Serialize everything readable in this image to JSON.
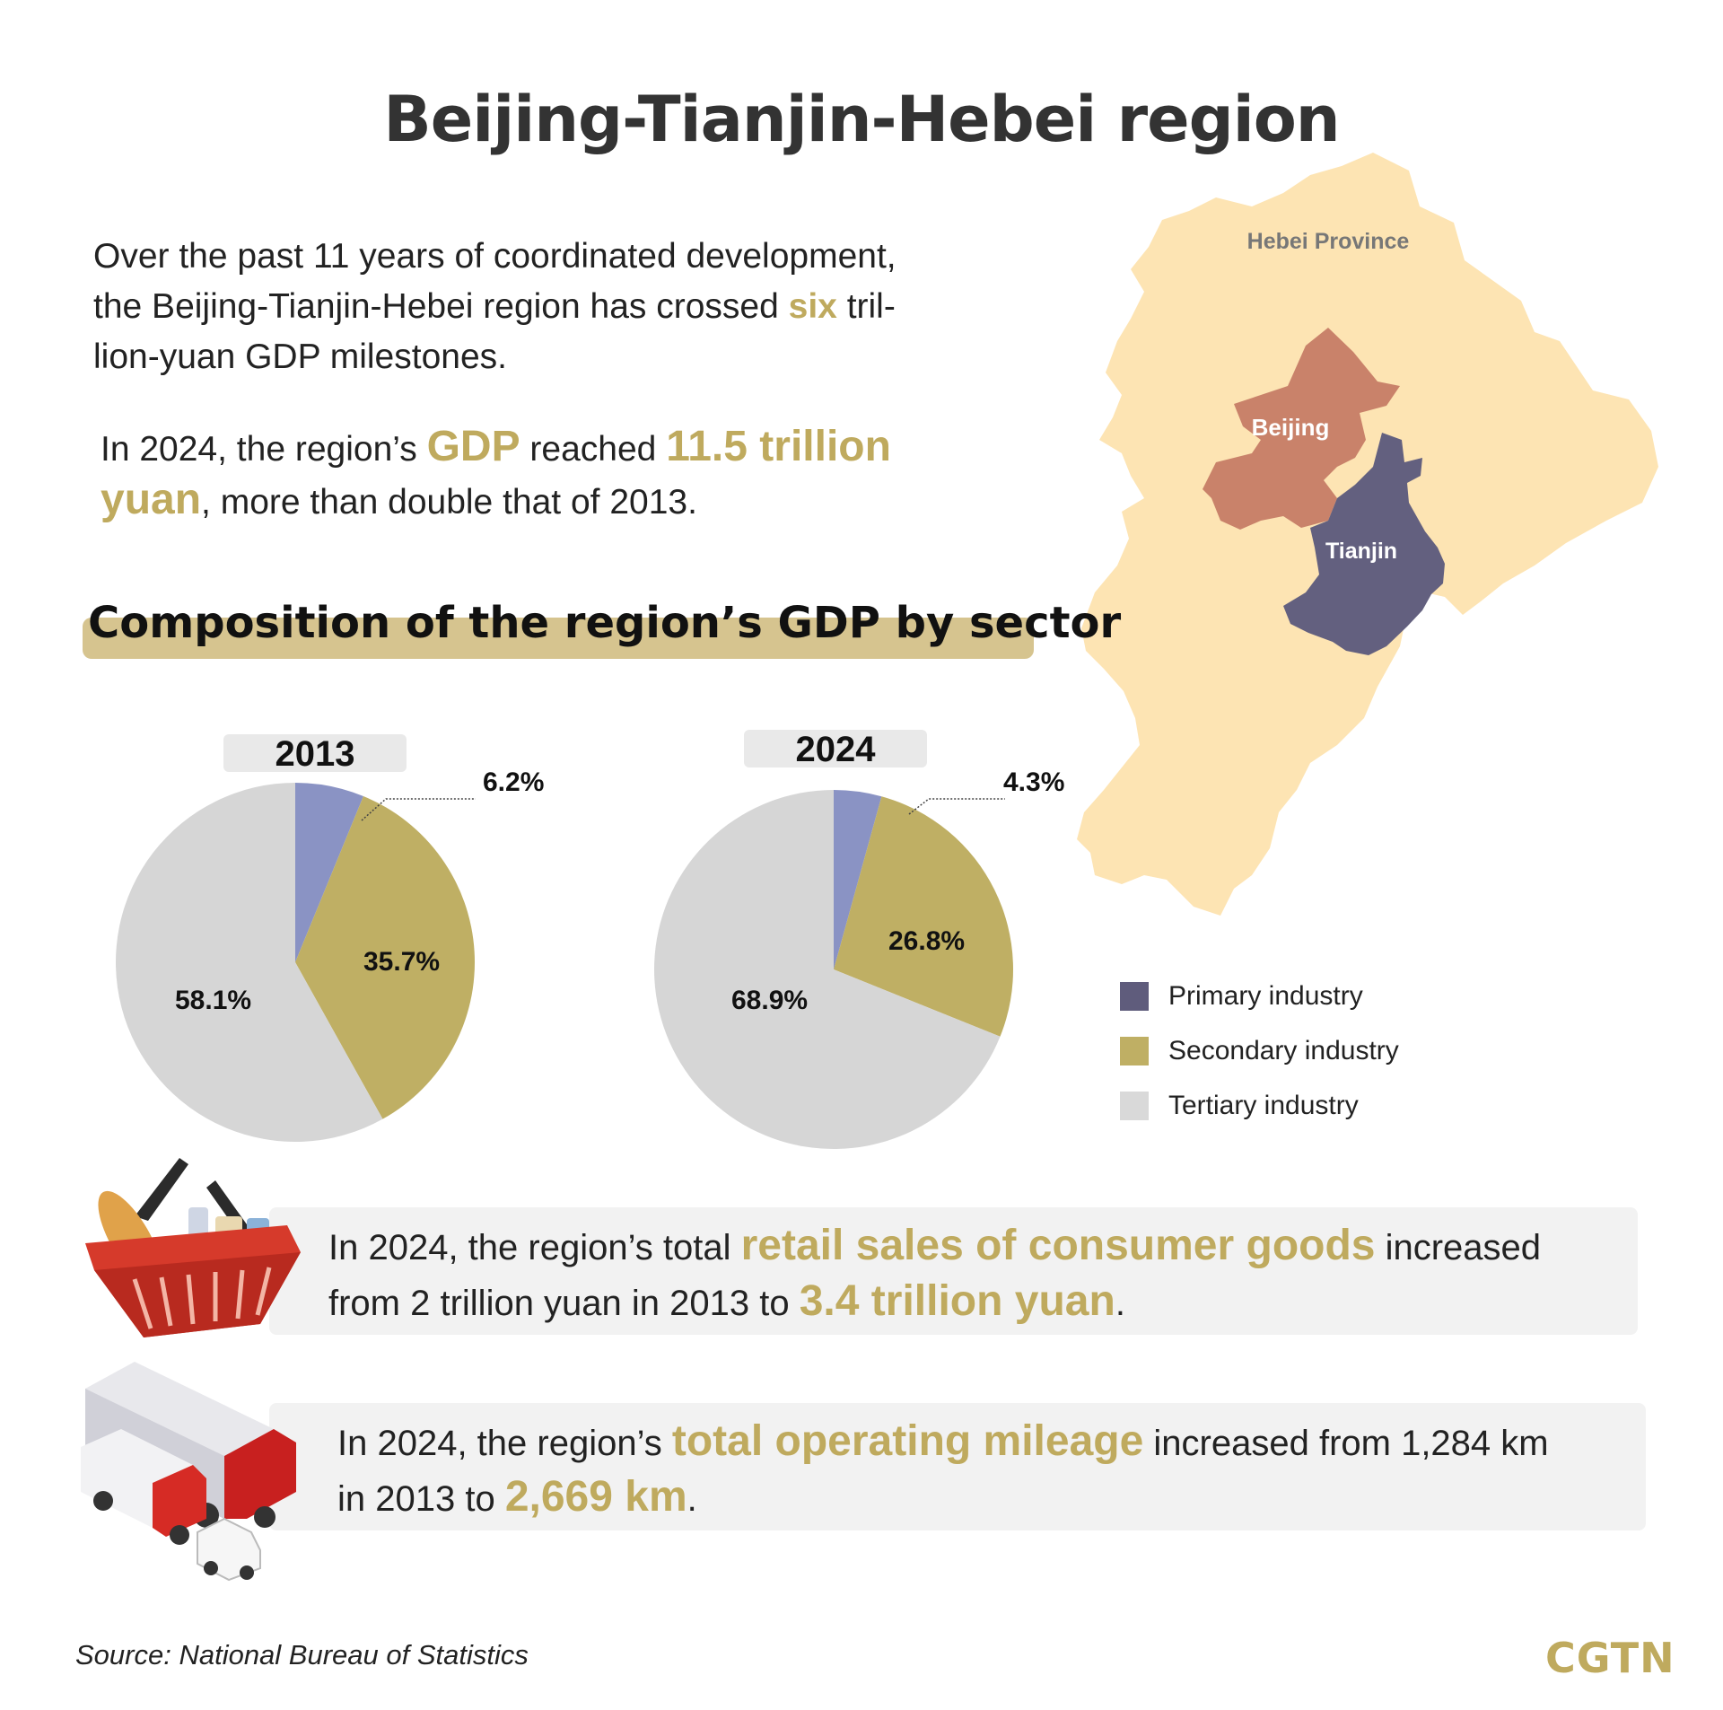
{
  "title": "Beijing-Tianjin-Hebei region",
  "intro": {
    "p1_before": "Over the past 11 years of coordinated development,",
    "p1_line2": "the Beijing-Tianjin-Hebei region has crossed ",
    "p1_highlight": "six",
    "p1_after": " tril-",
    "p1_line3": "lion-yuan GDP milestones.",
    "p2_before": "In 2024, the region’s ",
    "p2_gdp": "GDP",
    "p2_mid": " reached ",
    "p2_value_a": "11.5 trillion",
    "p2_value_b": "yuan",
    "p2_after": ", more than double that of 2013."
  },
  "map": {
    "labels": {
      "hebei": "Hebei Province",
      "beijing": "Beijing",
      "tianjin": "Tianjin"
    },
    "colors": {
      "hebei": "#fde4b3",
      "beijing": "#c9826a",
      "tianjin": "#63607f"
    }
  },
  "composition_title": "Composition of the region’s GDP by sector",
  "chart_data": [
    {
      "type": "pie",
      "title": "2013",
      "series": [
        {
          "name": "Primary industry",
          "value": 6.2,
          "label": "6.2%",
          "color": "#8a93c4"
        },
        {
          "name": "Secondary industry",
          "value": 35.7,
          "label": "35.7%",
          "color": "#bfaf64"
        },
        {
          "name": "Tertiary industry",
          "value": 58.1,
          "label": "58.1%",
          "color": "#d6d6d6"
        }
      ]
    },
    {
      "type": "pie",
      "title": "2024",
      "series": [
        {
          "name": "Primary industry",
          "value": 4.3,
          "label": "4.3%",
          "color": "#8a93c4"
        },
        {
          "name": "Secondary industry",
          "value": 26.8,
          "label": "26.8%",
          "color": "#bfaf64"
        },
        {
          "name": "Tertiary industry",
          "value": 68.9,
          "label": "68.9%",
          "color": "#d6d6d6"
        }
      ]
    }
  ],
  "legend": [
    {
      "label": "Primary industry",
      "color": "#5f5c7c"
    },
    {
      "label": "Secondary industry",
      "color": "#bfaf64"
    },
    {
      "label": "Tertiary industry",
      "color": "#d9d9d9"
    }
  ],
  "retail": {
    "before": "In 2024, the region’s total ",
    "highlight": "retail sales of consumer goods",
    "mid": " increased",
    "line2": "from 2 trillion yuan in 2013 to ",
    "value": "3.4 trillion yuan",
    "end": "."
  },
  "mileage": {
    "before": "In 2024, the region’s ",
    "highlight": "total operating mileage",
    "mid": " increased from 1,284 km",
    "line2": "in 2013 to ",
    "value": "2,669 km",
    "end": "."
  },
  "footer": {
    "source": "Source: National Bureau of Statistics",
    "logo": "CGTN"
  }
}
